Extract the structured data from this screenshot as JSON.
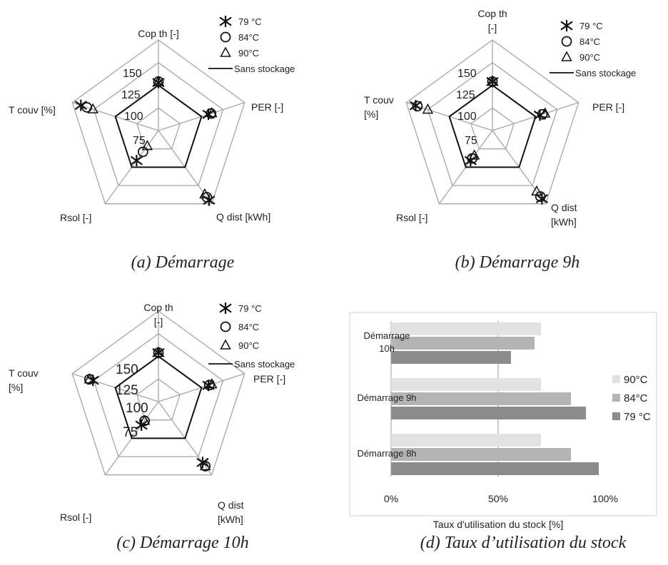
{
  "chart_data": [
    {
      "type": "radar",
      "caption": "(a)  Démarrage",
      "axes": [
        {
          "label": "Cop th [-]"
        },
        {
          "label": "PER [-]"
        },
        {
          "label": "Q dist [kWh]"
        },
        {
          "label": "Rsol [-]"
        },
        {
          "label": "T couv [%]"
        }
      ],
      "ticks": [
        "75",
        "100",
        "125",
        "150"
      ],
      "rlim": [
        50,
        150
      ],
      "legend_items": [
        "79 °C",
        "84°C",
        "90°C",
        "Sans stockage"
      ],
      "series": [
        {
          "name": "Sans stockage",
          "style": "line",
          "values": [
            100,
            100,
            100,
            100,
            100
          ]
        },
        {
          "name": "79 °C",
          "style": "asterisk",
          "values": [
            103,
            108,
            145,
            91,
            140
          ]
        },
        {
          "name": "84°C",
          "style": "circle",
          "values": [
            104,
            111,
            141,
            79,
            133
          ]
        },
        {
          "name": "90°C",
          "style": "triangle",
          "values": [
            104,
            112,
            137,
            71,
            126
          ]
        }
      ]
    },
    {
      "type": "radar",
      "caption": "(b)  Démarrage 9h",
      "axes": [
        {
          "label": "Cop th [-]"
        },
        {
          "label": "PER [-]"
        },
        {
          "label": "Q dist [kWh]"
        },
        {
          "label": "Rsol [-]"
        },
        {
          "label": "T couv [%]"
        }
      ],
      "ticks": [
        "75",
        "100",
        "125",
        "150"
      ],
      "rlim": [
        50,
        150
      ],
      "legend_items": [
        "79 °C",
        "84°C",
        "90°C",
        "Sans stockage"
      ],
      "series": [
        {
          "name": "Sans stockage",
          "style": "line",
          "values": [
            100,
            100,
            100,
            100,
            100
          ]
        },
        {
          "name": "79 °C",
          "style": "asterisk",
          "values": [
            104,
            105,
            143,
            91,
            139
          ]
        },
        {
          "name": "84°C",
          "style": "circle",
          "values": [
            104,
            108,
            140,
            88,
            137
          ]
        },
        {
          "name": "90°C",
          "style": "triangle",
          "values": [
            104,
            111,
            133,
            84,
            125
          ]
        }
      ]
    },
    {
      "type": "radar",
      "caption": "(c)  Démarrage 10h",
      "axes": [
        {
          "label": "Cop th [-]"
        },
        {
          "label": "PER [-]"
        },
        {
          "label": "Q dist [kWh]"
        },
        {
          "label": "Rsol [-]"
        },
        {
          "label": "T couv [%]"
        }
      ],
      "ticks": [
        "75",
        "100",
        "125",
        "150"
      ],
      "rlim": [
        50,
        150
      ],
      "legend_items": [
        "79 °C",
        "84°C",
        "90°C",
        "Sans stockage"
      ],
      "series": [
        {
          "name": "Sans stockage",
          "style": "line",
          "values": [
            100,
            100,
            100,
            100,
            100
          ]
        },
        {
          "name": "79 °C",
          "style": "asterisk",
          "values": [
            104,
            108,
            133,
            82,
            126
          ]
        },
        {
          "name": "84°C",
          "style": "circle",
          "values": [
            104,
            109,
            138,
            76,
            130
          ]
        },
        {
          "name": "90°C",
          "style": "triangle",
          "values": [
            104,
            112,
            138,
            76,
            130
          ]
        }
      ]
    },
    {
      "type": "bar",
      "orientation": "horizontal",
      "caption": "(d)  Taux d’utilisation du stock",
      "categories": [
        "Démarrage 10h",
        "Démarrage 9h",
        "Démarrage 8h"
      ],
      "category_lines": [
        [
          "Démarrage",
          "10h"
        ],
        [
          "Démarrage 9h"
        ],
        [
          "Démarrage 8h"
        ]
      ],
      "xlabel": "Taux d'utilisation du stock  [%]",
      "xlim": [
        0,
        100
      ],
      "xticks": [
        "0%",
        "50%",
        "100%"
      ],
      "gridlines": [
        50
      ],
      "legend_position": "right",
      "series": [
        {
          "name": "90°C",
          "color": "#e2e2e2",
          "values": [
            70,
            70,
            70
          ]
        },
        {
          "name": "84°C",
          "color": "#b4b4b4",
          "values": [
            67,
            84,
            84
          ]
        },
        {
          "name": "79 °C",
          "color": "#8c8c8c",
          "values": [
            56,
            91,
            97
          ]
        }
      ]
    }
  ]
}
